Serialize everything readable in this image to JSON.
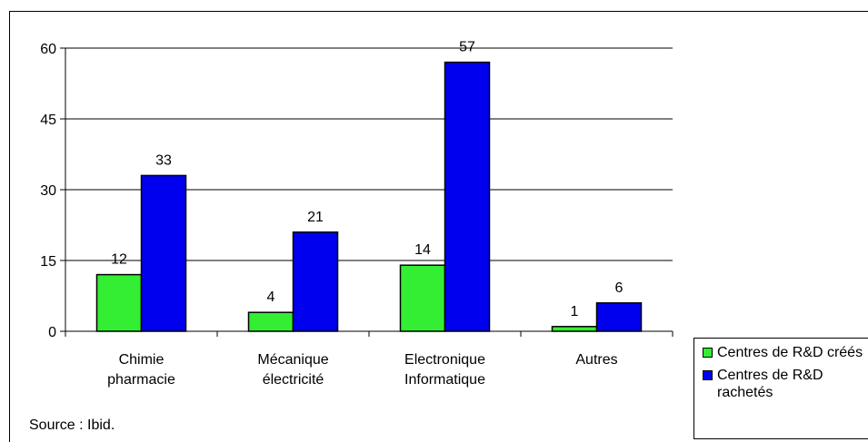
{
  "chart_data": {
    "type": "bar",
    "categories": [
      [
        "Chimie",
        "pharmacie"
      ],
      [
        "Mécanique",
        "électricité"
      ],
      [
        "Electronique",
        "Informatique"
      ],
      [
        "Autres"
      ]
    ],
    "series": [
      {
        "name": "Centres de R&D créés",
        "color": "#33ee33",
        "values": [
          12,
          4,
          14,
          1
        ]
      },
      {
        "name": "Centres de R&D rachetés",
        "color": "#0000ee",
        "values": [
          33,
          21,
          57,
          6
        ]
      }
    ],
    "ylim": [
      0,
      60
    ],
    "yticks": [
      0,
      15,
      30,
      45,
      60
    ],
    "grid": true,
    "legend": "bottom-right",
    "source": "Source : Ibid."
  }
}
